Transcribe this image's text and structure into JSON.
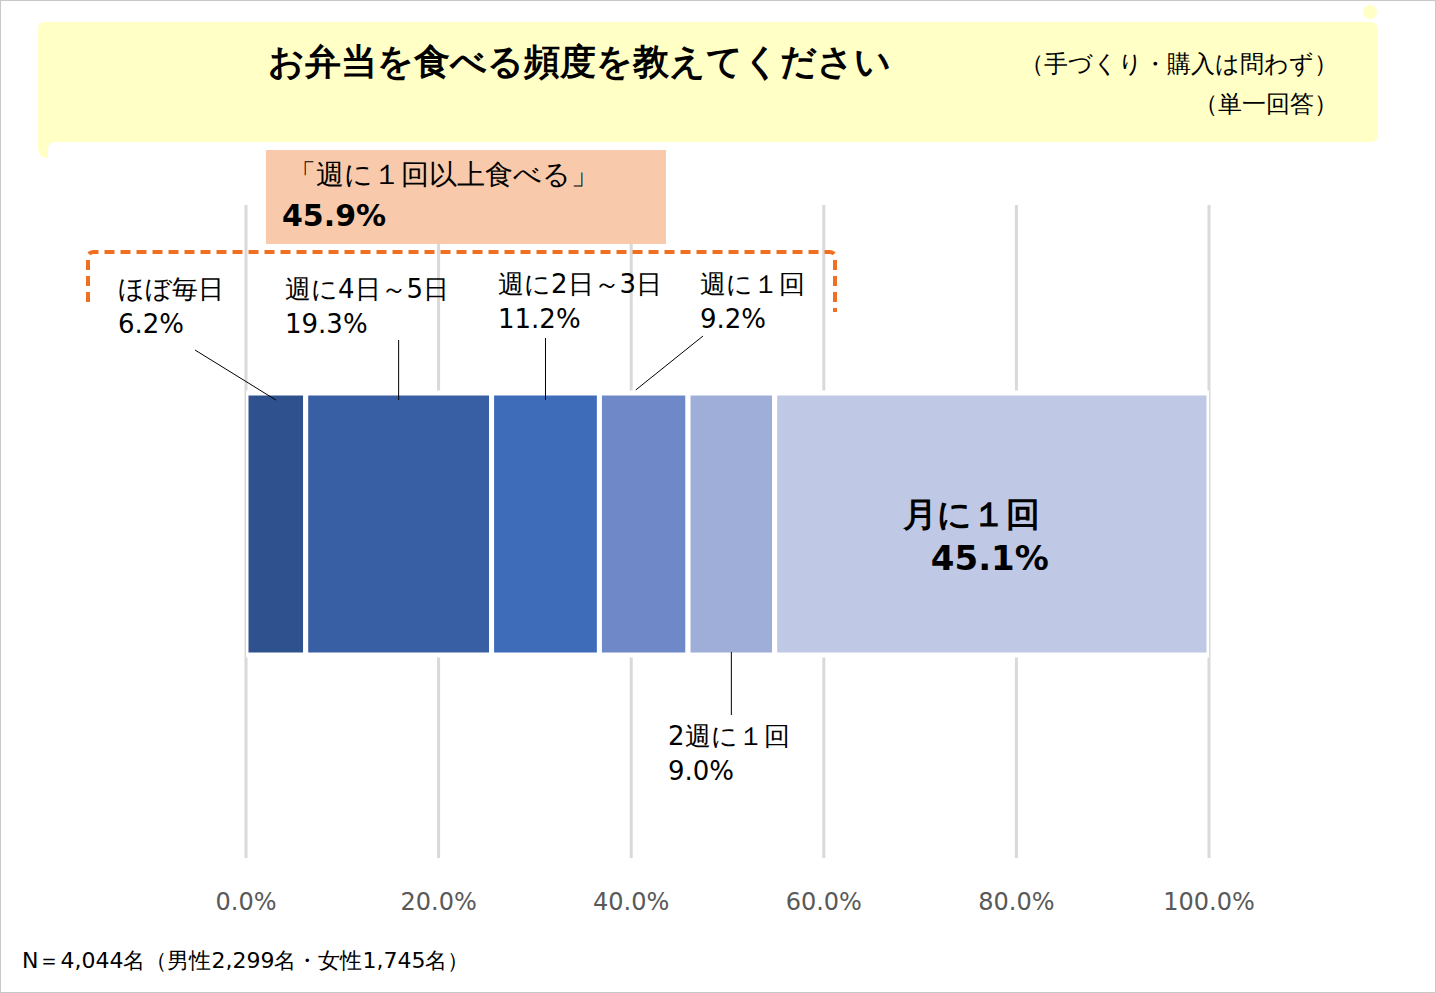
{
  "chart_data": {
    "type": "bar",
    "orientation": "horizontal",
    "stacked": true,
    "grid": true,
    "data_labels": true,
    "title": "お弁当を食べる頻度を教えてください",
    "subtitle": [
      "（手づくり・購入は問わず）",
      "（単一回答）"
    ],
    "annotation": {
      "text": "「週に１回以上食べる」",
      "value_label": "45.9%"
    },
    "note": "N＝4,044名（男性2,299名・女性1,745名）",
    "categories": [
      null
    ],
    "xlim": [
      0,
      100
    ],
    "xticks": [
      {
        "value": 0,
        "label": "0.0%"
      },
      {
        "value": 20,
        "label": "20.0%"
      },
      {
        "value": 40,
        "label": "40.0%"
      },
      {
        "value": 60,
        "label": "60.0%"
      },
      {
        "value": 80,
        "label": "80.0%"
      },
      {
        "value": 100,
        "label": "100.0%"
      }
    ],
    "series": [
      {
        "name": "ほぼ毎日",
        "color": "#2f528f",
        "values": [
          6.2
        ],
        "value_labels": [
          "6.2%"
        ]
      },
      {
        "name": "週に4日～5日",
        "color": "#385ea4",
        "values": [
          19.3
        ],
        "value_labels": [
          "19.3%"
        ]
      },
      {
        "name": "週に2日～3日",
        "color": "#3f6cb9",
        "values": [
          11.2
        ],
        "value_labels": [
          "11.2%"
        ]
      },
      {
        "name": "週に１回",
        "color": "#6e88c8",
        "values": [
          9.2
        ],
        "value_labels": [
          "9.2%"
        ]
      },
      {
        "name": "2週に１回",
        "color": "#9eaed8",
        "values": [
          9.0
        ],
        "value_labels": [
          "9.0%"
        ]
      },
      {
        "name": "月に１回",
        "color": "#bfc9e5",
        "values": [
          45.1
        ],
        "value_labels": [
          "45.1%"
        ]
      }
    ]
  }
}
